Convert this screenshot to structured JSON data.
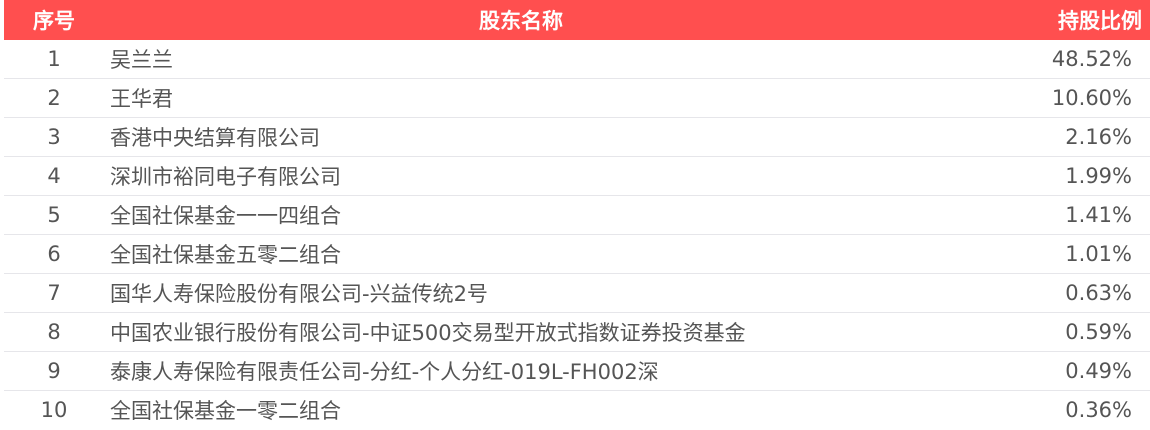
{
  "header": {
    "index": "序号",
    "name": "股东名称",
    "ratio": "持股比例"
  },
  "theme": {
    "header_bg": "#FF4F4F"
  },
  "rows": [
    {
      "index": "1",
      "name": "吴兰兰",
      "ratio": "48.52%"
    },
    {
      "index": "2",
      "name": "王华君",
      "ratio": "10.60%"
    },
    {
      "index": "3",
      "name": "香港中央结算有限公司",
      "ratio": "2.16%"
    },
    {
      "index": "4",
      "name": "深圳市裕同电子有限公司",
      "ratio": "1.99%"
    },
    {
      "index": "5",
      "name": "全国社保基金一一四组合",
      "ratio": "1.41%"
    },
    {
      "index": "6",
      "name": "全国社保基金五零二组合",
      "ratio": "1.01%"
    },
    {
      "index": "7",
      "name": "国华人寿保险股份有限公司-兴益传统2号",
      "ratio": "0.63%"
    },
    {
      "index": "8",
      "name": "中国农业银行股份有限公司-中证500交易型开放式指数证券投资基金",
      "ratio": "0.59%"
    },
    {
      "index": "9",
      "name": "泰康人寿保险有限责任公司-分红-个人分红-019L-FH002深",
      "ratio": "0.49%"
    },
    {
      "index": "10",
      "name": "全国社保基金一零二组合",
      "ratio": "0.36%"
    }
  ]
}
